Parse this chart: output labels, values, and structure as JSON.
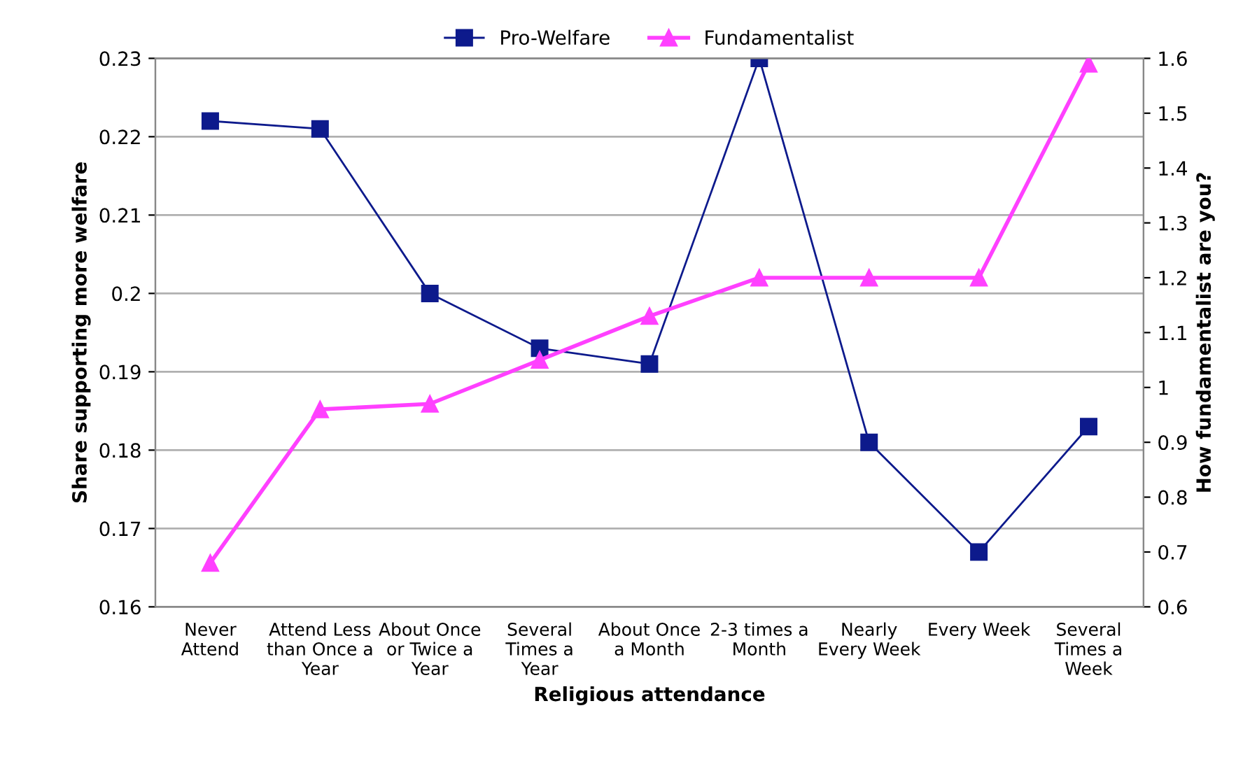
{
  "chart_data": {
    "type": "line",
    "xlabel": "Religious attendance",
    "ylabel": "Share supporting more welfare",
    "y2label": "How fundamentalist are you?",
    "categories": [
      "Never\nAttend",
      "Attend Less\nthan Once a\nYear",
      "About Once\nor Twice a\nYear",
      "Several\nTimes a\nYear",
      "About Once\na Month",
      "2-3 times a\nMonth",
      "Nearly\nEvery Week",
      "Every Week",
      "Several\nTimes a\nWeek"
    ],
    "series": [
      {
        "name": "Pro-Welfare",
        "color": "#0d1a8c",
        "marker": "square",
        "values": [
          0.222,
          0.221,
          0.2,
          0.193,
          0.191,
          0.23,
          0.181,
          0.167,
          0.183
        ]
      },
      {
        "name": "Fundamentalist",
        "color": "#ff40ff",
        "marker": "triangle",
        "axis": "y2",
        "values": [
          0.68,
          0.96,
          0.97,
          1.05,
          1.13,
          1.2,
          1.2,
          1.2,
          1.59
        ]
      }
    ],
    "ylim": [
      0.16,
      0.23
    ],
    "yticks": [
      0.16,
      0.17,
      0.18,
      0.19,
      0.2,
      0.21,
      0.22,
      0.23
    ],
    "y2lim": [
      0.6,
      1.6
    ],
    "y2ticks": [
      0.6,
      0.7,
      0.8,
      0.9,
      1,
      1.1,
      1.2,
      1.3,
      1.4,
      1.5,
      1.6
    ],
    "grid": "y",
    "legend": "top"
  }
}
